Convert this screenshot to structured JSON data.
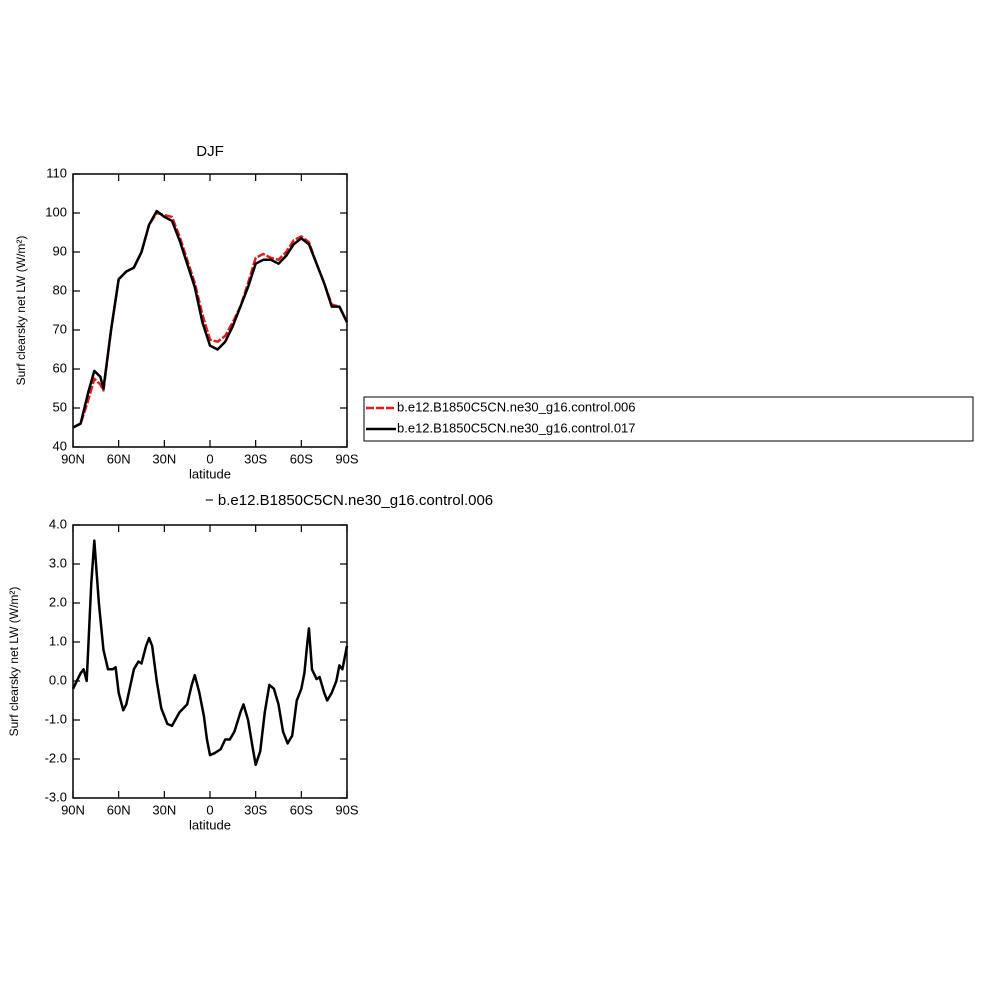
{
  "chart_data": [
    {
      "type": "line",
      "title": "DJF",
      "xlabel": "latitude",
      "ylabel": "Surf clearsky net LW (W/m²)",
      "xlim": [
        90,
        -90
      ],
      "xticks": [
        {
          "value": 90,
          "label": "90N"
        },
        {
          "value": 60,
          "label": "60N"
        },
        {
          "value": 30,
          "label": "30N"
        },
        0,
        {
          "value": -30,
          "label": "30S"
        },
        {
          "value": -60,
          "label": "60S"
        },
        {
          "value": -90,
          "label": "90S"
        }
      ],
      "ylim": [
        40,
        110
      ],
      "yticks": [
        40,
        50,
        60,
        70,
        80,
        90,
        100,
        110
      ],
      "legend": "right",
      "x": [
        90,
        85,
        80,
        76,
        72,
        70,
        65,
        60,
        55,
        50,
        45,
        40,
        35,
        30,
        25,
        20,
        15,
        10,
        5,
        0,
        -5,
        -10,
        -15,
        -20,
        -25,
        -30,
        -35,
        -40,
        -45,
        -50,
        -55,
        -60,
        -65,
        -70,
        -75,
        -80,
        -85,
        -90
      ],
      "series": [
        {
          "name": "b.e12.B1850C5CN.ne30_g16.control.006",
          "color": "#e41a1c",
          "dashed": true,
          "values": [
            45,
            46,
            52,
            57.5,
            56,
            54.5,
            70,
            83,
            85,
            86,
            90,
            97,
            100,
            99.5,
            99,
            94,
            88,
            82,
            74,
            67.5,
            67,
            68.5,
            72,
            76,
            82,
            88.5,
            89.5,
            88.5,
            88,
            90,
            93,
            94,
            92.5,
            87,
            82,
            76.5,
            76,
            72
          ]
        },
        {
          "name": "b.e12.B1850C5CN.ne30_g16.control.017",
          "color": "#000000",
          "dashed": false,
          "values": [
            45,
            46,
            54,
            59.5,
            58,
            55,
            70,
            83,
            85,
            86,
            90,
            97,
            100.5,
            99,
            98,
            93,
            87,
            81,
            72,
            66,
            65,
            67,
            71,
            76,
            81,
            87,
            88,
            88,
            87,
            89,
            92,
            93.5,
            92,
            87,
            82,
            76,
            76,
            72
          ]
        }
      ]
    },
    {
      "type": "line",
      "title": "− b.e12.B1850C5CN.ne30_g16.control.006",
      "xlabel": "latitude",
      "ylabel": "Surf clearsky net LW (W/m²)",
      "xlim": [
        90,
        -90
      ],
      "xticks": [
        {
          "value": 90,
          "label": "90N"
        },
        {
          "value": 60,
          "label": "60N"
        },
        {
          "value": 30,
          "label": "30N"
        },
        0,
        {
          "value": -30,
          "label": "30S"
        },
        {
          "value": -60,
          "label": "60S"
        },
        {
          "value": -90,
          "label": "90S"
        }
      ],
      "ylim": [
        -3,
        4
      ],
      "yticks": [
        {
          "value": -3,
          "label": "-3.0"
        },
        {
          "value": -2,
          "label": "-2.0"
        },
        {
          "value": -1,
          "label": "-1.0"
        },
        {
          "value": 0,
          "label": "0.0"
        },
        {
          "value": 1,
          "label": "1.0"
        },
        {
          "value": 2,
          "label": "2.0"
        },
        {
          "value": 3,
          "label": "3.0"
        },
        {
          "value": 4,
          "label": "4.0"
        }
      ],
      "color": "#000000",
      "x": [
        90,
        85,
        83,
        81,
        78,
        76,
        73,
        70,
        67,
        64,
        62,
        60,
        57,
        55,
        50,
        47,
        45,
        42,
        40,
        38,
        35,
        32,
        28,
        25,
        20,
        15,
        12,
        10,
        7,
        4,
        2,
        0,
        -3,
        -7,
        -10,
        -13,
        -16,
        -20,
        -22,
        -25,
        -28,
        -30,
        -33,
        -36,
        -39,
        -42,
        -45,
        -48,
        -51,
        -54,
        -57,
        -60,
        -62,
        -64,
        -65,
        -67,
        -70,
        -72,
        -75,
        -77,
        -80,
        -83,
        -85,
        -87,
        -90
      ],
      "values": [
        -0.2,
        0.2,
        0.3,
        0,
        2.5,
        3.6,
        2,
        0.8,
        0.3,
        0.3,
        0.35,
        -0.3,
        -0.75,
        -0.6,
        0.3,
        0.5,
        0.45,
        0.9,
        1.1,
        0.9,
        0,
        -0.7,
        -1.1,
        -1.15,
        -0.8,
        -0.6,
        -0.1,
        0.15,
        -0.3,
        -0.9,
        -1.5,
        -1.9,
        -1.85,
        -1.75,
        -1.5,
        -1.5,
        -1.3,
        -0.8,
        -0.6,
        -1,
        -1.7,
        -2.15,
        -1.8,
        -0.8,
        -0.1,
        -0.2,
        -0.6,
        -1.3,
        -1.6,
        -1.4,
        -0.5,
        -0.2,
        0.2,
        1.0,
        1.35,
        0.3,
        0.05,
        0.1,
        -0.3,
        -0.5,
        -0.3,
        0,
        0.4,
        0.3,
        0.9
      ]
    }
  ]
}
